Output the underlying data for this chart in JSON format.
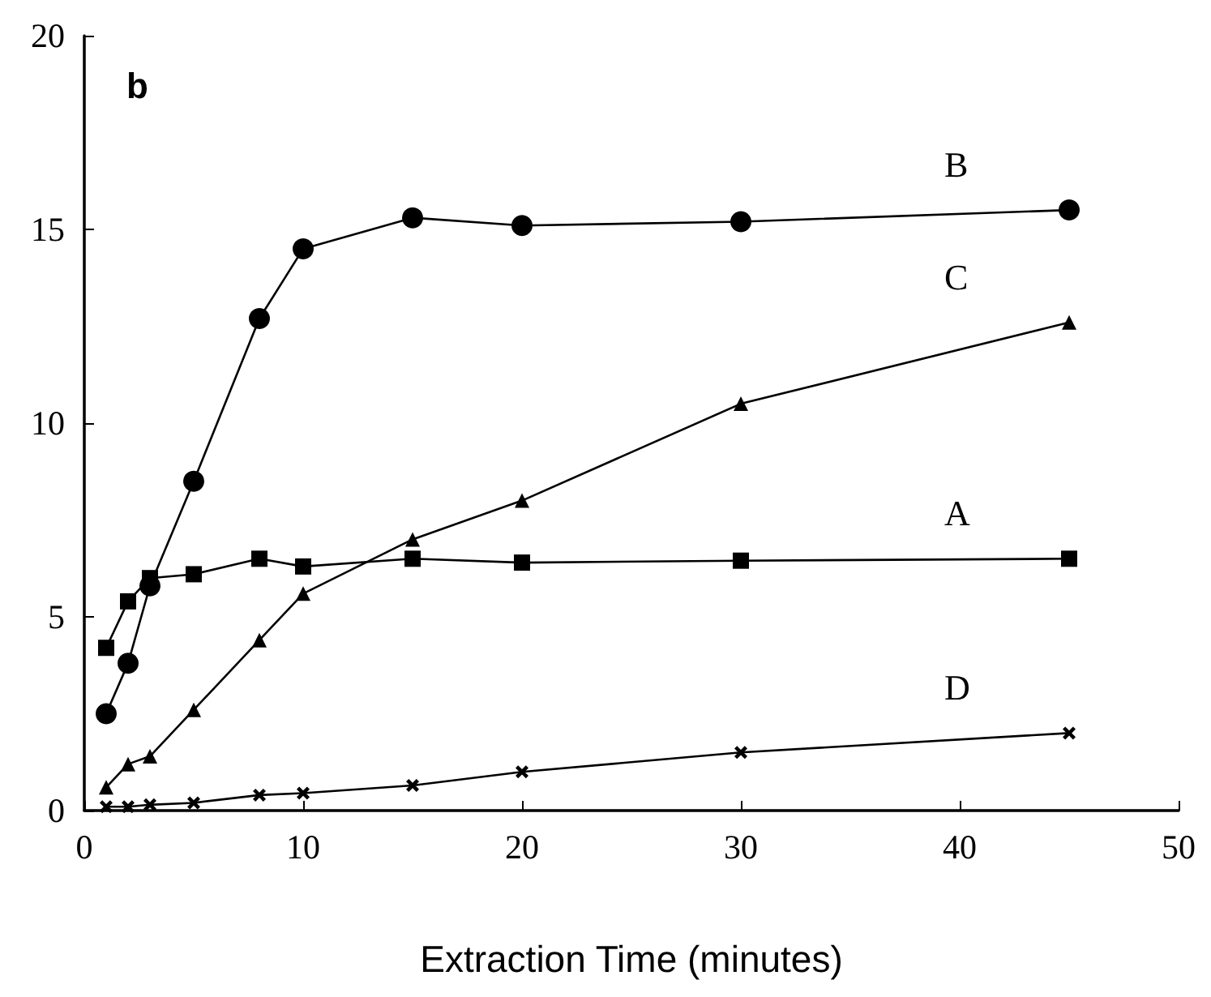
{
  "chart_data": {
    "type": "line",
    "xlabel": "Extraction Time (minutes)",
    "x": [
      1,
      2,
      3,
      5,
      8,
      10,
      15,
      20,
      30,
      45
    ],
    "xlim": [
      0,
      50
    ],
    "xticks": [
      0,
      10,
      20,
      30,
      40,
      50
    ],
    "ylim": [
      0,
      20
    ],
    "yticks": [
      0,
      5,
      10,
      15,
      20
    ],
    "grid": false,
    "legend": false,
    "line_style": "solid",
    "series": [
      {
        "name": "A",
        "color": "#000000",
        "marker": "square",
        "values": [
          4.2,
          5.4,
          6.0,
          6.1,
          6.5,
          6.3,
          6.5,
          6.4,
          6.45,
          6.5
        ]
      },
      {
        "name": "B",
        "color": "#000000",
        "marker": "circle",
        "values": [
          2.5,
          3.8,
          5.8,
          8.5,
          12.7,
          14.5,
          15.3,
          15.1,
          15.2,
          15.5
        ]
      },
      {
        "name": "C",
        "color": "#000000",
        "marker": "triangle",
        "values": [
          0.6,
          1.2,
          1.4,
          2.6,
          4.4,
          5.6,
          7.0,
          8.0,
          10.5,
          12.6
        ]
      },
      {
        "name": "D",
        "color": "#000000",
        "marker": "cross",
        "values": [
          0.1,
          0.1,
          0.15,
          0.2,
          0.4,
          0.45,
          0.65,
          1.0,
          1.5,
          2.0
        ]
      }
    ],
    "annotations": [
      "b"
    ]
  }
}
